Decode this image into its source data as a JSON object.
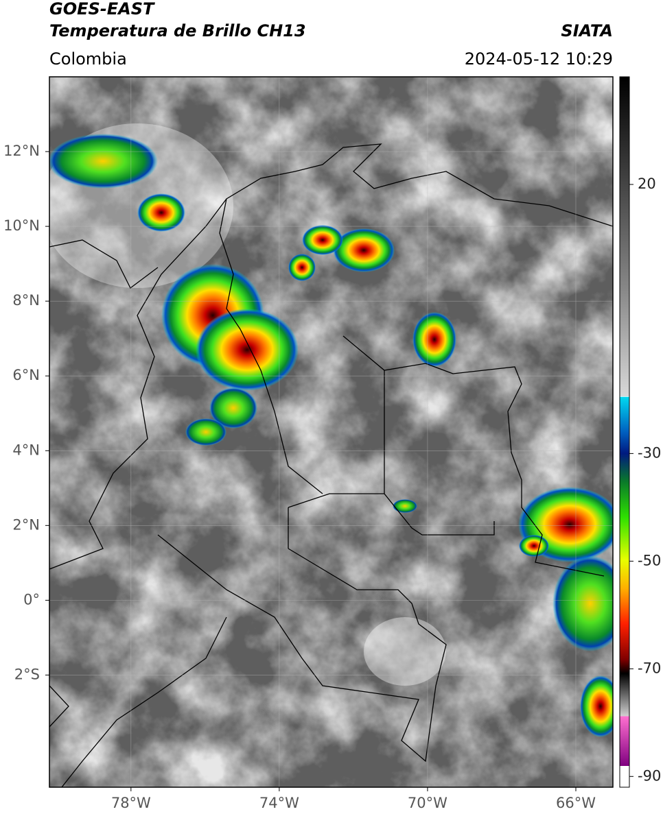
{
  "chart_data": {
    "type": "satellite-map",
    "title": "GOES-EAST",
    "subtitle": "Temperatura de Brillo CH13",
    "source": "SIATA",
    "region": "Colombia",
    "timestamp": "2024-05-12 10:29",
    "xlim": [
      -80.2,
      -65
    ],
    "ylim": [
      -5,
      14
    ],
    "xticks": [
      {
        "value": -78,
        "label": "78°W"
      },
      {
        "value": -74,
        "label": "74°W"
      },
      {
        "value": -70,
        "label": "70°W"
      },
      {
        "value": -66,
        "label": "66°W"
      }
    ],
    "yticks": [
      {
        "value": 12,
        "label": "12°N"
      },
      {
        "value": 10,
        "label": "10°N"
      },
      {
        "value": 8,
        "label": "8°N"
      },
      {
        "value": 6,
        "label": "6°N"
      },
      {
        "value": 4,
        "label": "4°N"
      },
      {
        "value": 2,
        "label": "2°N"
      },
      {
        "value": 0,
        "label": "0°"
      },
      {
        "value": -2,
        "label": "2°S"
      }
    ],
    "colorbar_lim": [
      -92,
      40
    ],
    "colorbar_ticks": [
      20,
      -30,
      -50,
      -70,
      -90
    ],
    "grid": true
  }
}
